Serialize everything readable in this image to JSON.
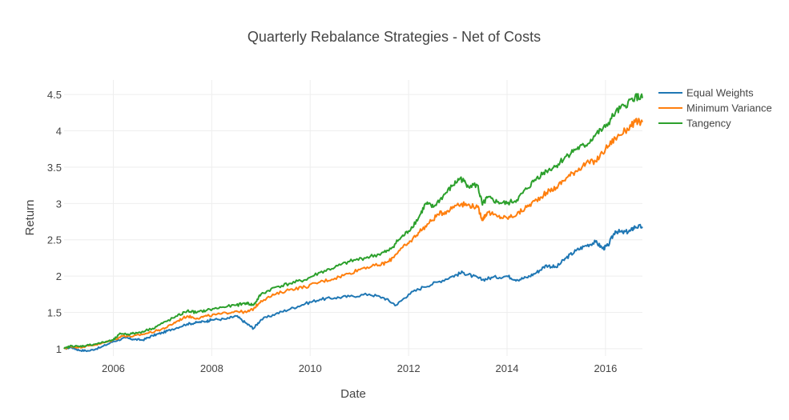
{
  "chart_data": {
    "type": "line",
    "title": "Quarterly Rebalance Strategies - Net of Costs",
    "xlabel": "Date",
    "ylabel": "Return",
    "xlim": [
      2005.0,
      2016.75
    ],
    "ylim": [
      0.9,
      4.7
    ],
    "grid": true,
    "legend": "top-right",
    "x_ticks": [
      {
        "value": 2006,
        "label": "2006"
      },
      {
        "value": 2008,
        "label": "2008"
      },
      {
        "value": 2010,
        "label": "2010"
      },
      {
        "value": 2012,
        "label": "2012"
      },
      {
        "value": 2014,
        "label": "2014"
      },
      {
        "value": 2016,
        "label": "2016"
      }
    ],
    "y_ticks": [
      {
        "value": 1,
        "label": "1"
      },
      {
        "value": 1.5,
        "label": "1.5"
      },
      {
        "value": 2,
        "label": "2"
      },
      {
        "value": 2.5,
        "label": "2.5"
      },
      {
        "value": 3,
        "label": "3"
      },
      {
        "value": 3.5,
        "label": "3.5"
      },
      {
        "value": 4,
        "label": "4"
      },
      {
        "value": 4.5,
        "label": "4.5"
      }
    ],
    "series": [
      {
        "name": "Equal Weights",
        "color": "#1f77b4",
        "points": [
          [
            2005.0,
            1.0
          ],
          [
            2005.15,
            1.02
          ],
          [
            2005.3,
            0.98
          ],
          [
            2005.5,
            0.97
          ],
          [
            2005.75,
            1.02
          ],
          [
            2006.0,
            1.1
          ],
          [
            2006.25,
            1.15
          ],
          [
            2006.4,
            1.13
          ],
          [
            2006.6,
            1.12
          ],
          [
            2006.8,
            1.18
          ],
          [
            2007.0,
            1.22
          ],
          [
            2007.2,
            1.27
          ],
          [
            2007.5,
            1.34
          ],
          [
            2007.7,
            1.36
          ],
          [
            2007.9,
            1.38
          ],
          [
            2008.0,
            1.4
          ],
          [
            2008.3,
            1.41
          ],
          [
            2008.5,
            1.45
          ],
          [
            2008.7,
            1.35
          ],
          [
            2008.85,
            1.28
          ],
          [
            2009.0,
            1.4
          ],
          [
            2009.3,
            1.48
          ],
          [
            2009.6,
            1.55
          ],
          [
            2009.9,
            1.62
          ],
          [
            2010.2,
            1.68
          ],
          [
            2010.5,
            1.7
          ],
          [
            2010.8,
            1.72
          ],
          [
            2011.2,
            1.75
          ],
          [
            2011.5,
            1.7
          ],
          [
            2011.75,
            1.6
          ],
          [
            2012.0,
            1.75
          ],
          [
            2012.3,
            1.85
          ],
          [
            2012.6,
            1.92
          ],
          [
            2012.9,
            2.0
          ],
          [
            2013.1,
            2.05
          ],
          [
            2013.3,
            2.0
          ],
          [
            2013.5,
            1.95
          ],
          [
            2013.7,
            1.98
          ],
          [
            2014.0,
            2.0
          ],
          [
            2014.2,
            1.95
          ],
          [
            2014.4,
            1.98
          ],
          [
            2014.6,
            2.05
          ],
          [
            2014.8,
            2.15
          ],
          [
            2015.0,
            2.12
          ],
          [
            2015.2,
            2.25
          ],
          [
            2015.4,
            2.35
          ],
          [
            2015.6,
            2.42
          ],
          [
            2015.8,
            2.47
          ],
          [
            2015.95,
            2.38
          ],
          [
            2016.05,
            2.42
          ],
          [
            2016.2,
            2.62
          ],
          [
            2016.35,
            2.6
          ],
          [
            2016.5,
            2.62
          ],
          [
            2016.6,
            2.68
          ],
          [
            2016.75,
            2.68
          ]
        ]
      },
      {
        "name": "Minimum Variance",
        "color": "#ff7f0e",
        "points": [
          [
            2005.0,
            1.0
          ],
          [
            2005.15,
            1.03
          ],
          [
            2005.3,
            1.02
          ],
          [
            2005.5,
            1.04
          ],
          [
            2005.75,
            1.07
          ],
          [
            2006.0,
            1.12
          ],
          [
            2006.2,
            1.18
          ],
          [
            2006.4,
            1.17
          ],
          [
            2006.6,
            1.2
          ],
          [
            2006.9,
            1.25
          ],
          [
            2007.1,
            1.3
          ],
          [
            2007.3,
            1.38
          ],
          [
            2007.5,
            1.45
          ],
          [
            2007.7,
            1.42
          ],
          [
            2007.9,
            1.45
          ],
          [
            2008.2,
            1.48
          ],
          [
            2008.5,
            1.52
          ],
          [
            2008.7,
            1.5
          ],
          [
            2008.85,
            1.55
          ],
          [
            2009.0,
            1.66
          ],
          [
            2009.3,
            1.75
          ],
          [
            2009.6,
            1.82
          ],
          [
            2009.9,
            1.85
          ],
          [
            2010.2,
            1.92
          ],
          [
            2010.5,
            1.97
          ],
          [
            2010.8,
            2.04
          ],
          [
            2011.1,
            2.12
          ],
          [
            2011.4,
            2.15
          ],
          [
            2011.6,
            2.2
          ],
          [
            2011.8,
            2.35
          ],
          [
            2012.0,
            2.45
          ],
          [
            2012.2,
            2.6
          ],
          [
            2012.4,
            2.72
          ],
          [
            2012.6,
            2.85
          ],
          [
            2012.8,
            2.9
          ],
          [
            2013.0,
            3.0
          ],
          [
            2013.2,
            2.98
          ],
          [
            2013.4,
            2.95
          ],
          [
            2013.5,
            2.78
          ],
          [
            2013.6,
            2.88
          ],
          [
            2013.8,
            2.82
          ],
          [
            2014.0,
            2.8
          ],
          [
            2014.2,
            2.85
          ],
          [
            2014.4,
            2.95
          ],
          [
            2014.6,
            3.05
          ],
          [
            2014.8,
            3.15
          ],
          [
            2015.0,
            3.22
          ],
          [
            2015.2,
            3.35
          ],
          [
            2015.4,
            3.45
          ],
          [
            2015.6,
            3.55
          ],
          [
            2015.8,
            3.58
          ],
          [
            2016.0,
            3.75
          ],
          [
            2016.2,
            3.9
          ],
          [
            2016.4,
            4.0
          ],
          [
            2016.6,
            4.12
          ],
          [
            2016.75,
            4.12
          ]
        ]
      },
      {
        "name": "Tangency",
        "color": "#2ca02c",
        "points": [
          [
            2005.0,
            1.0
          ],
          [
            2005.15,
            1.04
          ],
          [
            2005.3,
            1.03
          ],
          [
            2005.5,
            1.05
          ],
          [
            2005.75,
            1.08
          ],
          [
            2006.0,
            1.12
          ],
          [
            2006.15,
            1.21
          ],
          [
            2006.3,
            1.2
          ],
          [
            2006.5,
            1.22
          ],
          [
            2006.8,
            1.28
          ],
          [
            2007.0,
            1.35
          ],
          [
            2007.3,
            1.45
          ],
          [
            2007.5,
            1.52
          ],
          [
            2007.7,
            1.5
          ],
          [
            2007.9,
            1.53
          ],
          [
            2008.2,
            1.57
          ],
          [
            2008.5,
            1.6
          ],
          [
            2008.7,
            1.63
          ],
          [
            2008.85,
            1.6
          ],
          [
            2009.0,
            1.75
          ],
          [
            2009.3,
            1.85
          ],
          [
            2009.6,
            1.9
          ],
          [
            2009.9,
            1.95
          ],
          [
            2010.2,
            2.05
          ],
          [
            2010.5,
            2.12
          ],
          [
            2010.8,
            2.2
          ],
          [
            2011.1,
            2.25
          ],
          [
            2011.4,
            2.3
          ],
          [
            2011.6,
            2.35
          ],
          [
            2011.8,
            2.5
          ],
          [
            2012.0,
            2.62
          ],
          [
            2012.2,
            2.8
          ],
          [
            2012.35,
            3.0
          ],
          [
            2012.5,
            2.95
          ],
          [
            2012.7,
            3.1
          ],
          [
            2012.9,
            3.25
          ],
          [
            2013.05,
            3.35
          ],
          [
            2013.2,
            3.25
          ],
          [
            2013.4,
            3.25
          ],
          [
            2013.5,
            2.98
          ],
          [
            2013.6,
            3.08
          ],
          [
            2013.8,
            3.02
          ],
          [
            2014.0,
            3.0
          ],
          [
            2014.2,
            3.05
          ],
          [
            2014.4,
            3.2
          ],
          [
            2014.6,
            3.35
          ],
          [
            2014.8,
            3.45
          ],
          [
            2015.0,
            3.52
          ],
          [
            2015.2,
            3.65
          ],
          [
            2015.4,
            3.75
          ],
          [
            2015.6,
            3.8
          ],
          [
            2015.8,
            3.95
          ],
          [
            2016.0,
            4.05
          ],
          [
            2016.2,
            4.25
          ],
          [
            2016.4,
            4.35
          ],
          [
            2016.6,
            4.47
          ],
          [
            2016.75,
            4.45
          ]
        ]
      }
    ]
  }
}
